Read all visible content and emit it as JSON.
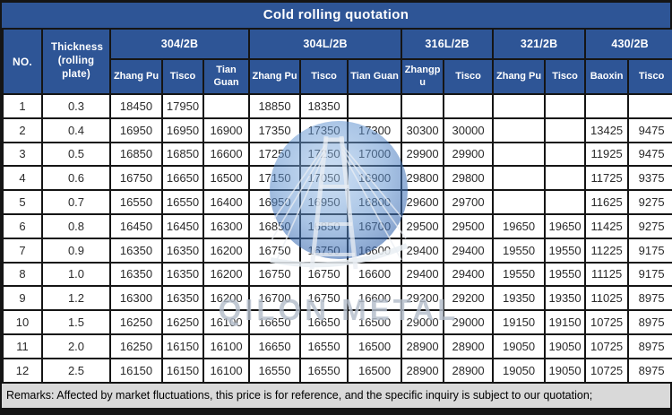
{
  "title": "Cold rolling quotation",
  "watermark": {
    "text": "QILON METAL"
  },
  "colors": {
    "header_blue": "#2e5596",
    "border_dark": "#151515",
    "cell_bg": "#ffffff",
    "remarks_bg": "#d9d9d9",
    "watermark_circle_blue": "#4f83c4",
    "watermark_text_gray": "#b3bdca"
  },
  "table": {
    "corner": {
      "no": "NO.",
      "thickness": "Thickness (rolling plate)"
    },
    "groups": [
      {
        "label": "304/2B",
        "suppliers": [
          "Zhang Pu",
          "Tisco",
          "Tian Guan"
        ]
      },
      {
        "label": "304L/2B",
        "suppliers": [
          "Zhang Pu",
          "Tisco",
          "Tian Guan"
        ]
      },
      {
        "label": "316L/2B",
        "suppliers": [
          "Zhangpu",
          "Tisco"
        ]
      },
      {
        "label": "321/2B",
        "suppliers": [
          "Zhang Pu",
          "Tisco"
        ]
      },
      {
        "label": "430/2B",
        "suppliers": [
          "Baoxin",
          "Tisco"
        ]
      }
    ],
    "rows": [
      {
        "no": "1",
        "thickness": "0.3",
        "prices": [
          "18450",
          "17950",
          "",
          "18850",
          "18350",
          "",
          "",
          "",
          "",
          "",
          "",
          ""
        ]
      },
      {
        "no": "2",
        "thickness": "0.4",
        "prices": [
          "16950",
          "16950",
          "16900",
          "17350",
          "17350",
          "17300",
          "30300",
          "30000",
          "",
          "",
          "13425",
          "9475"
        ]
      },
      {
        "no": "3",
        "thickness": "0.5",
        "prices": [
          "16850",
          "16850",
          "16600",
          "17250",
          "17250",
          "17000",
          "29900",
          "29900",
          "",
          "",
          "11925",
          "9475"
        ]
      },
      {
        "no": "4",
        "thickness": "0.6",
        "prices": [
          "16750",
          "16650",
          "16500",
          "17150",
          "17050",
          "16900",
          "29800",
          "29800",
          "",
          "",
          "11725",
          "9375"
        ]
      },
      {
        "no": "5",
        "thickness": "0.7",
        "prices": [
          "16550",
          "16550",
          "16400",
          "16950",
          "16950",
          "16800",
          "29600",
          "29700",
          "",
          "",
          "11625",
          "9275"
        ]
      },
      {
        "no": "6",
        "thickness": "0.8",
        "prices": [
          "16450",
          "16450",
          "16300",
          "16850",
          "16850",
          "16700",
          "29500",
          "29500",
          "19650",
          "19650",
          "11425",
          "9275"
        ]
      },
      {
        "no": "7",
        "thickness": "0.9",
        "prices": [
          "16350",
          "16350",
          "16200",
          "16750",
          "16750",
          "16600",
          "29400",
          "29400",
          "19550",
          "19550",
          "11225",
          "9175"
        ]
      },
      {
        "no": "8",
        "thickness": "1.0",
        "prices": [
          "16350",
          "16350",
          "16200",
          "16750",
          "16750",
          "16600",
          "29400",
          "29400",
          "19550",
          "19550",
          "11125",
          "9175"
        ]
      },
      {
        "no": "9",
        "thickness": "1.2",
        "prices": [
          "16300",
          "16350",
          "16200",
          "16700",
          "16750",
          "16600",
          "29200",
          "29200",
          "19350",
          "19350",
          "11025",
          "8975"
        ]
      },
      {
        "no": "10",
        "thickness": "1.5",
        "prices": [
          "16250",
          "16250",
          "16100",
          "16650",
          "16650",
          "16500",
          "29000",
          "29000",
          "19150",
          "19150",
          "10725",
          "8975"
        ]
      },
      {
        "no": "11",
        "thickness": "2.0",
        "prices": [
          "16250",
          "16150",
          "16100",
          "16650",
          "16550",
          "16500",
          "28900",
          "28900",
          "19050",
          "19050",
          "10725",
          "8975"
        ]
      },
      {
        "no": "12",
        "thickness": "2.5",
        "prices": [
          "16150",
          "16150",
          "16100",
          "16550",
          "16550",
          "16500",
          "28900",
          "28900",
          "19050",
          "19050",
          "10725",
          "8975"
        ]
      }
    ]
  },
  "remarks": "Remarks: Affected by market fluctuations, this price is for reference, and the specific inquiry is subject to our quotation;"
}
